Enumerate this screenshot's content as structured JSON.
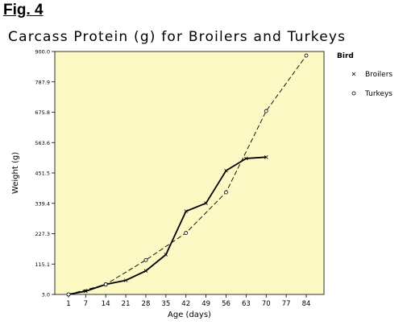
{
  "figure_label": "Fig. 4",
  "chart_data": {
    "type": "line",
    "title": "Carcass Protein (g) for Broilers and Turkeys",
    "xlabel": "Age (days)",
    "ylabel": "Weight (g)",
    "x_ticks": [
      "1",
      "7",
      "14",
      "21",
      "28",
      "35",
      "42",
      "49",
      "56",
      "63",
      "70",
      "77",
      "84"
    ],
    "y_ticks": [
      "3.0",
      "115.1",
      "227.3",
      "339.4",
      "451.5",
      "563.6",
      "675.8",
      "787.9",
      "900.0"
    ],
    "xlim": [
      1,
      84
    ],
    "ylim": [
      3.0,
      900.0
    ],
    "background": "#fdf9c4",
    "legend_title": "Bird",
    "series": [
      {
        "name": "Broilers",
        "marker": "x",
        "line": "solid",
        "x": [
          1,
          7,
          14,
          21,
          28,
          35,
          42,
          49,
          56,
          63,
          70
        ],
        "y": [
          3,
          15,
          40,
          55,
          90,
          150,
          310,
          340,
          460,
          505,
          510
        ]
      },
      {
        "name": "Turkeys",
        "marker": "o",
        "line": "dashed",
        "x": [
          1,
          14,
          28,
          42,
          56,
          70,
          84
        ],
        "y": [
          3,
          40,
          130,
          230,
          380,
          680,
          885
        ]
      }
    ]
  }
}
